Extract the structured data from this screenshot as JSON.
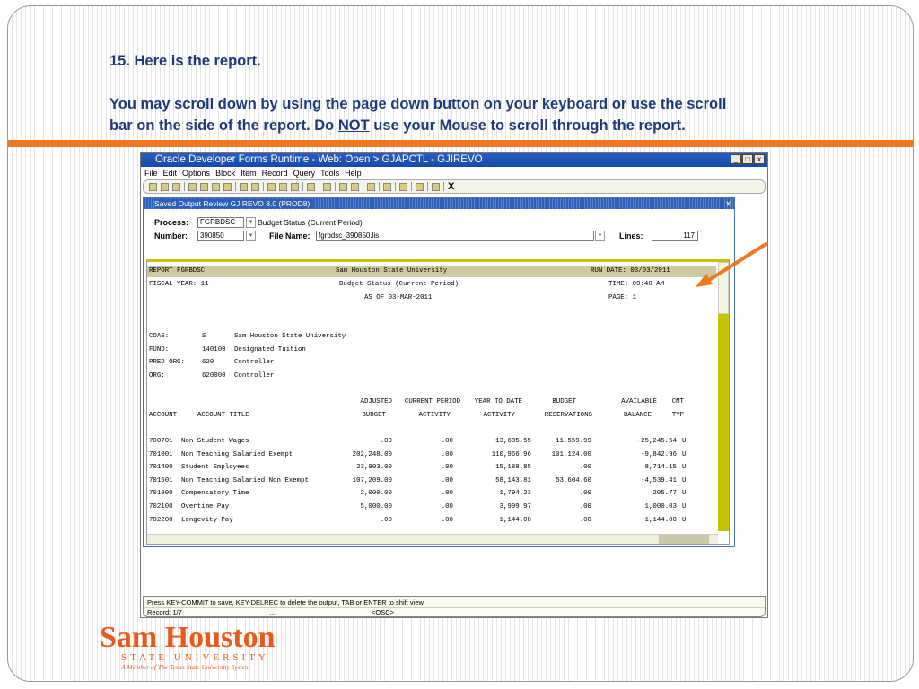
{
  "slide": {
    "step": "15. Here is the report.",
    "instr_1": "You may scroll down by using the page down button on your keyboard or use the scroll",
    "instr_2a": "bar on the side of the report.  Do ",
    "instr_not": "NOT",
    "instr_2b": " use your Mouse to scroll through the report.",
    "accent": "#f07820",
    "text_color": "#1f3a78"
  },
  "window": {
    "title": "Oracle Developer Forms Runtime - Web:  Open > GJAPCTL - GJIREVO",
    "menu": [
      "File",
      "Edit",
      "Options",
      "Block",
      "Item",
      "Record",
      "Query",
      "Tools",
      "Help"
    ],
    "toolbar_exit": "X"
  },
  "form": {
    "title": "Saved Output Review  GJIREVO  8.0  (PROD8)",
    "process_label": "Process:",
    "process_value": "FGRBDSC",
    "process_desc": "Budget Status (Current Period)",
    "number_label": "Number:",
    "number_value": "390850",
    "filename_label": "File Name:",
    "filename_value": "fgrbdsc_390850.lis",
    "lines_label": "Lines:",
    "lines_value": "117"
  },
  "report": {
    "h1": [
      "REPORT FGRBDSC",
      "Sam Houston State University",
      "RUN DATE: 03/03/2011"
    ],
    "h2": [
      "FISCAL YEAR: 11",
      "Budget Status (Current Period)",
      "TIME: 09:40 AM"
    ],
    "h3": [
      "AS OF 03-MAR-2011",
      "PAGE: 1"
    ],
    "info": [
      [
        "COAS:",
        "S",
        "Sam Houston State University"
      ],
      [
        "FUND:",
        "140100",
        "Designated Tuition"
      ],
      [
        "PRED ORG:",
        "620",
        "Controller"
      ],
      [
        "ORG:",
        "620000",
        "Controller"
      ]
    ],
    "col_top": [
      "ADJUSTED",
      "CURRENT PERIOD",
      "YEAR TO DATE",
      "BUDGET",
      "AVAILABLE",
      "CMT"
    ],
    "col_bottom": [
      "ACCOUNT",
      "ACCOUNT TITLE",
      "BUDGET",
      "ACTIVITY",
      "ACTIVITY",
      "RESERVATIONS",
      "BALANCE",
      "TYP"
    ],
    "rows": [
      [
        "700701",
        "Non Student Wages",
        ".00",
        ".00",
        "13,685.55",
        "11,559.99",
        "-25,245.54",
        "U"
      ],
      [
        "701001",
        "Non Teaching Salaried Exempt",
        "202,248.00",
        ".00",
        "110,966.96",
        "101,124.00",
        "-9,842.96",
        "U"
      ],
      [
        "701400",
        "Student Employees",
        "23,903.00",
        ".00",
        "15,188.85",
        ".00",
        "8,714.15",
        "U"
      ],
      [
        "701501",
        "Non Teaching Salaried Non Exempt",
        "107,209.00",
        ".00",
        "58,143.81",
        "53,604.60",
        "-4,539.41",
        "U"
      ],
      [
        "701900",
        "Compensatory Time",
        "2,000.00",
        ".00",
        "1,794.23",
        ".00",
        "205.77",
        "U"
      ],
      [
        "702100",
        "Overtime Pay",
        "5,000.00",
        ".00",
        "3,999.97",
        ".00",
        "1,000.03",
        "U"
      ],
      [
        "702200",
        "Longevity Pay",
        ".00",
        ".00",
        "1,144.00",
        ".00",
        "-1,144.00",
        "U"
      ]
    ]
  },
  "status": {
    "message": "Press KEY-COMMIT to save, KEY-DELREC to delete the output, TAB or ENTER to shift view.",
    "record": "Record: 1/7",
    "ellipsis": "...",
    "mode": "<OSC>"
  },
  "logo": {
    "name": "Sam Houston",
    "sub": "STATE UNIVERSITY",
    "tag": "A Member of The Texas State University System"
  }
}
